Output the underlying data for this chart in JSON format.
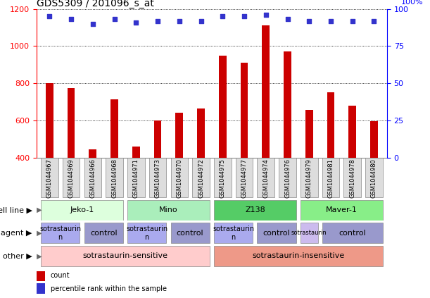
{
  "title": "GDS5309 / 201096_s_at",
  "samples": [
    "GSM1044967",
    "GSM1044969",
    "GSM1044966",
    "GSM1044968",
    "GSM1044971",
    "GSM1044973",
    "GSM1044970",
    "GSM1044972",
    "GSM1044975",
    "GSM1044977",
    "GSM1044974",
    "GSM1044976",
    "GSM1044979",
    "GSM1044981",
    "GSM1044978",
    "GSM1044980"
  ],
  "counts": [
    800,
    775,
    445,
    715,
    460,
    600,
    640,
    665,
    950,
    910,
    1110,
    970,
    655,
    750,
    680,
    595
  ],
  "percentiles": [
    95,
    93,
    90,
    93,
    91,
    92,
    92,
    92,
    95,
    95,
    96,
    93,
    92,
    92,
    92,
    92
  ],
  "bar_color": "#cc0000",
  "dot_color": "#3333cc",
  "ylim_left": [
    400,
    1200
  ],
  "ylim_right": [
    0,
    100
  ],
  "yticks_left": [
    400,
    600,
    800,
    1000,
    1200
  ],
  "yticks_right": [
    0,
    25,
    50,
    75,
    100
  ],
  "cell_lines": [
    {
      "label": "Jeko-1",
      "start": 0,
      "end": 4,
      "color": "#ddffdd"
    },
    {
      "label": "Mino",
      "start": 4,
      "end": 8,
      "color": "#aaeebb"
    },
    {
      "label": "Z138",
      "start": 8,
      "end": 12,
      "color": "#55cc66"
    },
    {
      "label": "Maver-1",
      "start": 12,
      "end": 16,
      "color": "#88ee88"
    }
  ],
  "agents": [
    {
      "label": "sotrastaurin\nn",
      "start": 0,
      "end": 2,
      "color": "#aaaaee",
      "fontsize": 7
    },
    {
      "label": "control",
      "start": 2,
      "end": 4,
      "color": "#9999cc",
      "fontsize": 8
    },
    {
      "label": "sotrastaurin\nn",
      "start": 4,
      "end": 6,
      "color": "#aaaaee",
      "fontsize": 7
    },
    {
      "label": "control",
      "start": 6,
      "end": 8,
      "color": "#9999cc",
      "fontsize": 8
    },
    {
      "label": "sotrastaurin\nn",
      "start": 8,
      "end": 10,
      "color": "#aaaaee",
      "fontsize": 7
    },
    {
      "label": "control",
      "start": 10,
      "end": 12,
      "color": "#9999cc",
      "fontsize": 8
    },
    {
      "label": "sotrastaurin",
      "start": 12,
      "end": 13,
      "color": "#ccbbee",
      "fontsize": 6
    },
    {
      "label": "control",
      "start": 13,
      "end": 16,
      "color": "#9999cc",
      "fontsize": 8
    }
  ],
  "others": [
    {
      "label": "sotrastaurin-sensitive",
      "start": 0,
      "end": 8,
      "color": "#ffcccc"
    },
    {
      "label": "sotrastaurin-insensitive",
      "start": 8,
      "end": 16,
      "color": "#ee9988"
    }
  ],
  "row_labels": [
    "cell line",
    "agent",
    "other"
  ],
  "legend_count_color": "#cc0000",
  "legend_dot_color": "#3333cc",
  "background_color": "#ffffff",
  "title_fontsize": 10,
  "tick_fontsize": 6,
  "label_fontsize": 8,
  "row_label_fontsize": 8
}
